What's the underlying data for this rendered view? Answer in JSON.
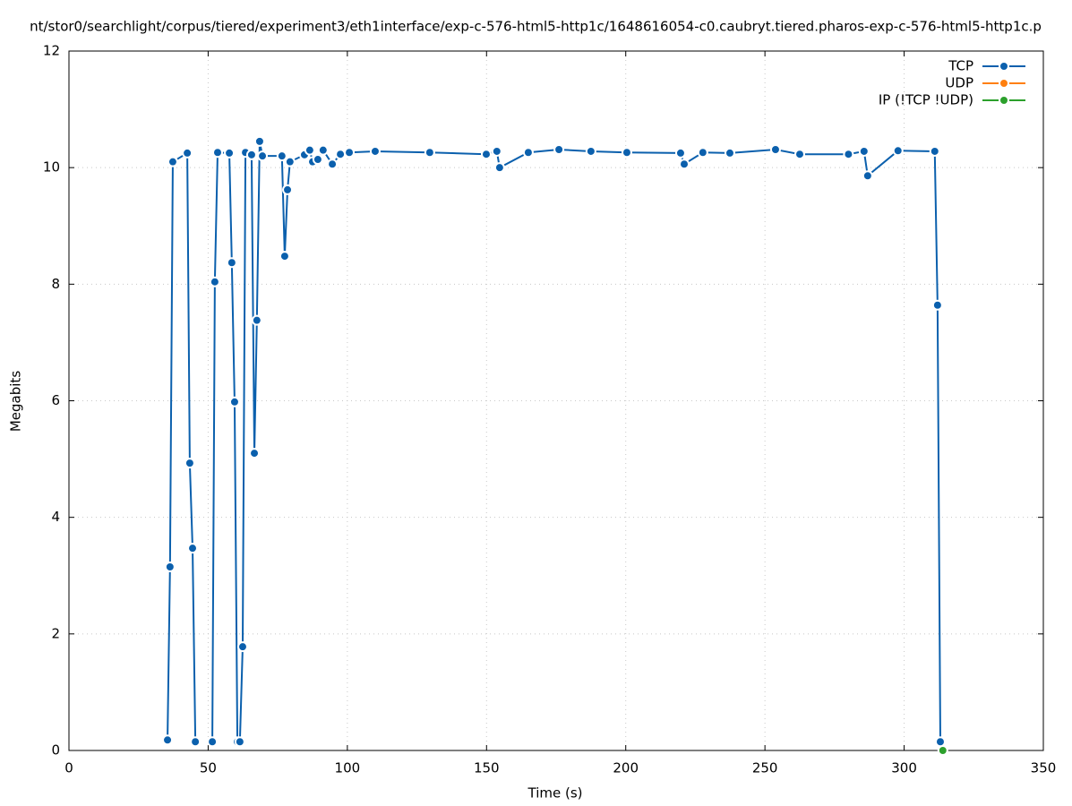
{
  "chart_data": {
    "type": "line",
    "title": "nt/stor0/searchlight/corpus/tiered/experiment3/eth1interface/exp-c-576-html5-http1c/1648616054-c0.caubryt.tiered.pharos-exp-c-576-html5-http1c.p",
    "x_label": "Time (s)",
    "y_label": "Megabits",
    "xlim": [
      0,
      350
    ],
    "ylim": [
      0,
      12
    ],
    "xticks": [
      0,
      50,
      100,
      150,
      200,
      250,
      300,
      350
    ],
    "yticks": [
      0,
      2,
      4,
      6,
      8,
      10,
      12
    ],
    "grid": true,
    "legend": "top-right",
    "series": [
      {
        "name": "TCP",
        "color": "#0b60ad",
        "x": [
          35.4,
          36.3,
          37.3,
          42.5,
          43.4,
          44.4,
          45.4,
          null,
          51.5,
          52.4,
          53.4,
          57.6,
          58.5,
          59.5,
          60.5,
          null,
          61.4,
          62.4,
          63.4,
          65.6,
          66.6,
          67.5,
          68.5,
          69.5,
          76.5,
          77.5,
          78.5,
          79.4,
          84.6,
          86.5,
          87.5,
          89.4,
          91.3,
          94.6,
          97.5,
          100.7,
          110,
          129.6,
          149.9,
          153.7,
          154.7,
          165,
          176,
          187.5,
          200.4,
          219.7,
          221,
          227.7,
          237.4,
          253.8,
          262.5,
          280,
          285.6,
          286.9,
          297.8,
          311,
          312,
          313
        ],
        "values": [
          0.18,
          3.15,
          10.1,
          10.25,
          4.93,
          3.47,
          0.15,
          null,
          0.15,
          8.04,
          10.26,
          10.25,
          8.37,
          5.98,
          0.15,
          null,
          0.15,
          1.78,
          10.26,
          10.22,
          5.1,
          7.38,
          10.45,
          10.2,
          10.2,
          8.48,
          9.62,
          10.1,
          10.22,
          10.3,
          10.1,
          10.14,
          10.3,
          10.06,
          10.23,
          10.26,
          10.28,
          10.26,
          10.23,
          10.28,
          10.0,
          10.26,
          10.31,
          10.28,
          10.26,
          10.25,
          10.06,
          10.26,
          10.25,
          10.31,
          10.23,
          10.23,
          10.28,
          9.86,
          10.29,
          10.28,
          7.64,
          0.15
        ]
      },
      {
        "name": "UDP",
        "color": "#ff7f0e",
        "x": [],
        "values": []
      },
      {
        "name": "IP (!TCP  !UDP)",
        "color": "#2ca02c",
        "x": [
          313.9
        ],
        "values": [
          0
        ]
      }
    ]
  }
}
